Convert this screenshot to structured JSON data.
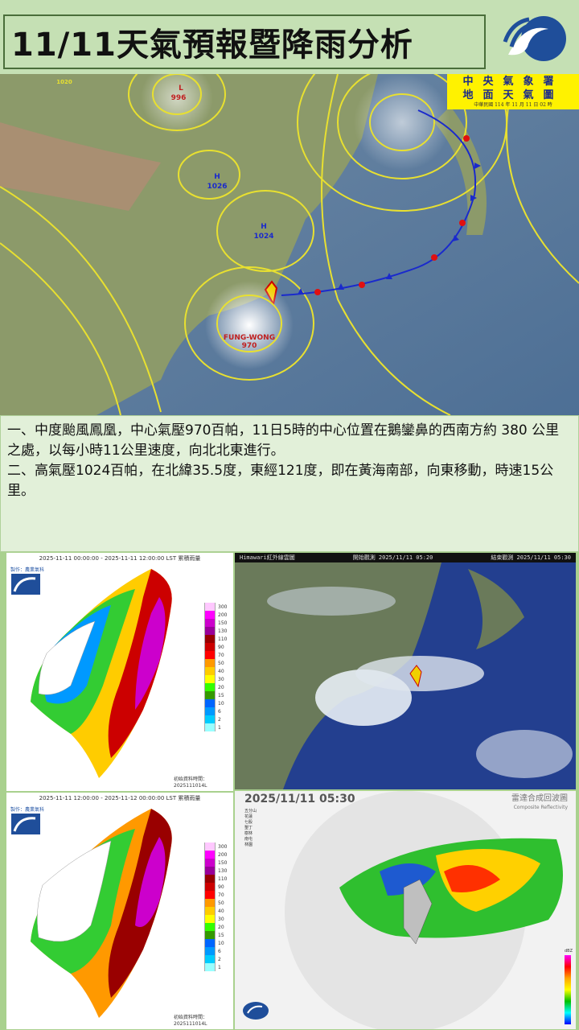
{
  "header": {
    "title": "11/11天氣預報暨降雨分析",
    "logo": "cwa-logo"
  },
  "surface_map": {
    "stamp": {
      "line1": "中央氣象署",
      "line2": "地面天氣圖",
      "line3": "中華民國 114 年 11 月 11 日 02 時"
    },
    "labels": {
      "typhoon_name": "FUNG-WONG",
      "typhoon_pressure": "970",
      "high1": "H",
      "high1_p": "1026",
      "high2": "H",
      "high2_p": "1024",
      "low": "L",
      "low_p": "996",
      "low_p2": "1020"
    }
  },
  "analysis": {
    "item1": "一、中度颱風鳳凰，中心氣壓970百帕，11日5時的中心位置在鵝鑾鼻的西南方約 380 公里之處，以每小時11公里速度，向北北東進行。",
    "item2": "二、高氣壓1024百帕，在北緯35.5度，東經121度，即在黃海南部，向東移動，時速15公里。"
  },
  "rain_maps": [
    {
      "caption": "2025-11-11 00:00:00 - 2025-11-11 12:00:00 LST  累積雨量",
      "credit": "製作：農業氣科",
      "init_label": "初始資料時間：",
      "init_time": "2025111014L"
    },
    {
      "caption": "2025-11-11 12:00:00 - 2025-11-12 00:00:00 LST  累積雨量",
      "credit": "製作：農業氣科",
      "init_label": "初始資料時間：",
      "init_time": "2025111014L"
    }
  ],
  "rain_legend": [
    {
      "label": "300",
      "color": "#ffc8ff"
    },
    {
      "label": "200",
      "color": "#ff00ff"
    },
    {
      "label": "150",
      "color": "#cc00cc"
    },
    {
      "label": "130",
      "color": "#990099"
    },
    {
      "label": "110",
      "color": "#990000"
    },
    {
      "label": "90",
      "color": "#cc0000"
    },
    {
      "label": "70",
      "color": "#ff0000"
    },
    {
      "label": "50",
      "color": "#ff9900"
    },
    {
      "label": "40",
      "color": "#ffcc00"
    },
    {
      "label": "30",
      "color": "#ffff00"
    },
    {
      "label": "20",
      "color": "#33ff00"
    },
    {
      "label": "15",
      "color": "#339900"
    },
    {
      "label": "10",
      "color": "#0066ff"
    },
    {
      "label": "6",
      "color": "#0099ff"
    },
    {
      "label": "2",
      "color": "#00ccff"
    },
    {
      "label": "1",
      "color": "#99ffff"
    }
  ],
  "satellite": {
    "product": "Himawari紅外線雲圖",
    "start": "開始觀測 2025/11/11 05:20",
    "end": "結束觀測 2025/11/11 05:30"
  },
  "radar": {
    "time": "2025/11/11  05:30",
    "title": "雷達合成回波圖",
    "title_en": "Composite Reflectivity",
    "stations": [
      "五分山",
      "花蓮",
      "七股",
      "墾丁",
      "樹林",
      "南屯",
      "林園"
    ],
    "unit": "dBZ"
  }
}
